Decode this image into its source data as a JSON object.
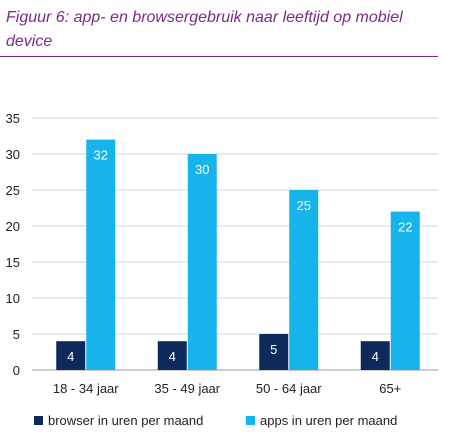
{
  "title": "Figuur 6: app- en browsergebruik naar leeftijd op mobiel device",
  "chart_data": {
    "type": "bar",
    "categories": [
      "18 - 34 jaar",
      "35 - 49 jaar",
      "50 - 64 jaar",
      "65+"
    ],
    "series": [
      {
        "name": "browser in uren per maand",
        "values": [
          4,
          4,
          5,
          4
        ],
        "color": "#0d2a5c"
      },
      {
        "name": "apps in uren per maand",
        "values": [
          32,
          30,
          25,
          22
        ],
        "color": "#16b4ea"
      }
    ],
    "ylim": [
      0,
      35
    ],
    "yticks": [
      0,
      5,
      10,
      15,
      20,
      25,
      30,
      35
    ],
    "grid": true,
    "legend_position": "bottom-left"
  }
}
